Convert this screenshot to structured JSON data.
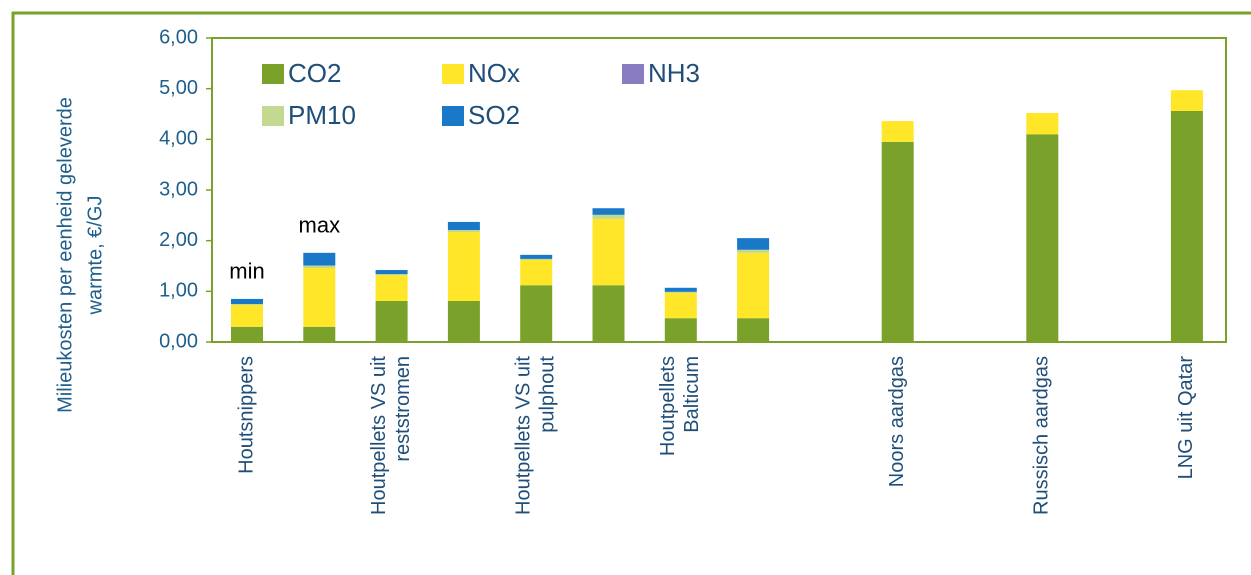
{
  "chart_data": {
    "type": "stacked_bar",
    "ylabel": [
      "Milieukosten per eenheid geleverde",
      "warmte, €/GJ"
    ],
    "categories": [
      [
        "Houtsnippers"
      ],
      null,
      [
        "Houtpellets VS uit",
        "reststromen"
      ],
      null,
      [
        "Houtpellets VS uit",
        "pulphout"
      ],
      null,
      [
        "Houtpellets",
        "Balticum"
      ],
      null,
      null,
      [
        "Noors aardgas"
      ],
      null,
      [
        "Russisch aardgas"
      ],
      null,
      [
        "LNG uit Qatar"
      ]
    ],
    "series": [
      {
        "name": "CO2",
        "color": "#7aa22a",
        "values": [
          0.3,
          0.3,
          0.81,
          0.81,
          1.12,
          1.12,
          0.47,
          0.47,
          null,
          3.95,
          null,
          4.1,
          null,
          4.56
        ]
      },
      {
        "name": "NOx",
        "color": "#ffe629",
        "values": [
          0.43,
          1.16,
          0.51,
          1.36,
          0.5,
          1.31,
          0.5,
          1.29,
          null,
          0.41,
          null,
          0.42,
          null,
          0.41
        ]
      },
      {
        "name": "NH3",
        "color": "#8a7cc0",
        "values": [
          0,
          0,
          0,
          0,
          0,
          0,
          0,
          0,
          null,
          0,
          null,
          0,
          null,
          0
        ]
      },
      {
        "name": "PM10",
        "color": "#c2d98f",
        "values": [
          0.02,
          0.05,
          0.02,
          0.04,
          0.02,
          0.08,
          0.02,
          0.06,
          null,
          0,
          null,
          0,
          null,
          0
        ]
      },
      {
        "name": "SO2",
        "color": "#1a78c8",
        "values": [
          0.1,
          0.25,
          0.08,
          0.16,
          0.08,
          0.13,
          0.08,
          0.23,
          null,
          0,
          null,
          0,
          null,
          0
        ]
      }
    ],
    "annotations": [
      {
        "text": "min",
        "index": 0
      },
      {
        "text": "max",
        "index": 1
      }
    ],
    "ylim": [
      0,
      6
    ],
    "yticks": [
      {
        "value": 0,
        "label": "0,00"
      },
      {
        "value": 1,
        "label": "1,00"
      },
      {
        "value": 2,
        "label": "2,00"
      },
      {
        "value": 3,
        "label": "3,00"
      },
      {
        "value": 4,
        "label": "4,00"
      },
      {
        "value": 5,
        "label": "5,00"
      },
      {
        "value": 6,
        "label": "6,00"
      }
    ],
    "legend": "top-left"
  }
}
